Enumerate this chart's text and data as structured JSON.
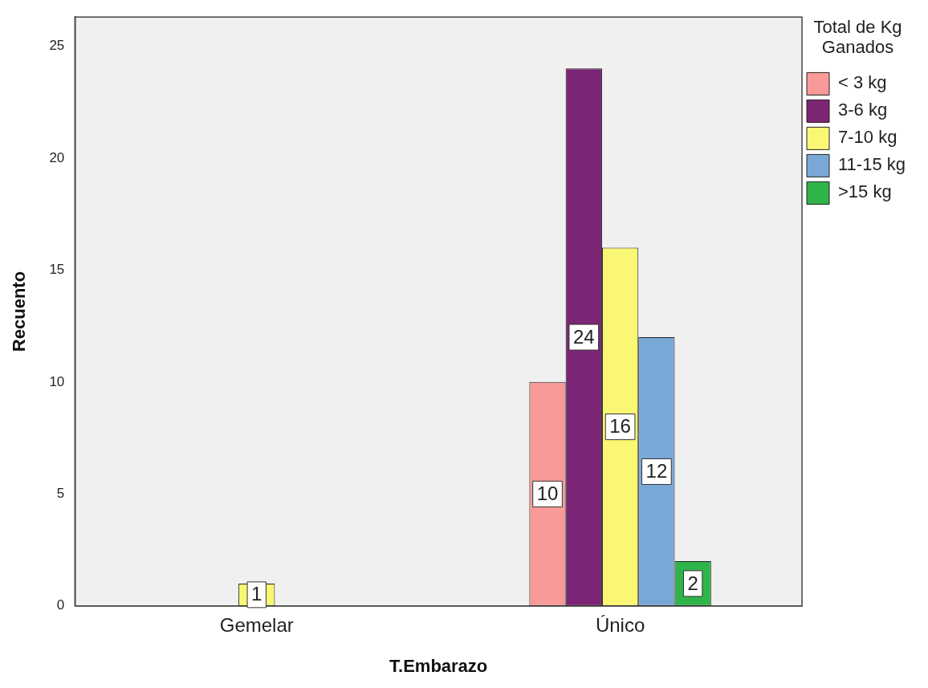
{
  "chart_data": {
    "type": "bar",
    "xlabel": "T.Embarazo",
    "ylabel": "Recuento",
    "legend_title": "Total de Kg Ganados",
    "categories": [
      "Gemelar",
      "Único"
    ],
    "series": [
      {
        "name": "< 3 kg",
        "color": "#f89a98",
        "values": [
          null,
          10
        ]
      },
      {
        "name": "3-6 kg",
        "color": "#7b2574",
        "values": [
          null,
          24
        ]
      },
      {
        "name": "7-10 kg",
        "color": "#f9f773",
        "values": [
          1,
          16
        ]
      },
      {
        "name": "11-15 kg",
        "color": "#7aa8d6",
        "values": [
          null,
          12
        ]
      },
      {
        "name": ">15 kg",
        "color": "#2fb44a",
        "values": [
          null,
          2
        ]
      }
    ],
    "ylim": [
      0,
      26.3
    ],
    "yticks": [
      0,
      5,
      10,
      15,
      20,
      25
    ],
    "grid": false,
    "legend": "top right",
    "data_labels": true
  }
}
